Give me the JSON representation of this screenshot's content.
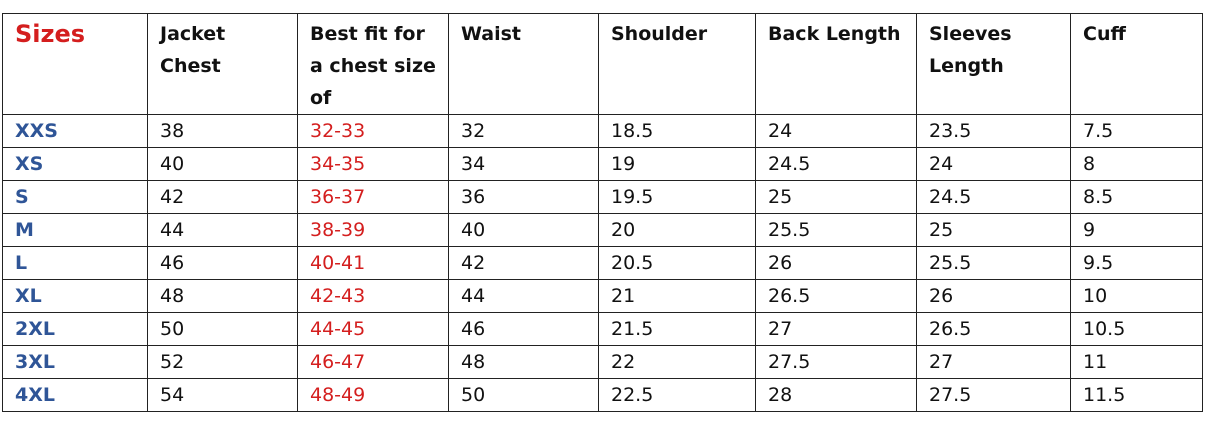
{
  "headers": [
    "Sizes",
    "Jacket Chest",
    "Best fit for a chest size of",
    "Waist",
    "Shoulder",
    "Back Length",
    "Sleeves Length",
    "Cuff"
  ],
  "colors": {
    "sizes_header": "#d41e1e",
    "size_labels": "#2f5597",
    "best_fit_values": "#d41e1e"
  },
  "rows": [
    [
      "XXS",
      "38",
      "32-33",
      "32",
      "18.5",
      "24",
      "23.5",
      "7.5"
    ],
    [
      "XS",
      "40",
      "34-35",
      "34",
      "19",
      "24.5",
      "24",
      "8"
    ],
    [
      "S",
      "42",
      "36-37",
      "36",
      "19.5",
      "25",
      "24.5",
      "8.5"
    ],
    [
      "M",
      "44",
      "38-39",
      "40",
      "20",
      "25.5",
      "25",
      "9"
    ],
    [
      "L",
      "46",
      "40-41",
      "42",
      "20.5",
      "26",
      "25.5",
      "9.5"
    ],
    [
      "XL",
      "48",
      "42-43",
      "44",
      "21",
      "26.5",
      "26",
      "10"
    ],
    [
      "2XL",
      "50",
      "44-45",
      "46",
      "21.5",
      "27",
      "26.5",
      "10.5"
    ],
    [
      "3XL",
      "52",
      "46-47",
      "48",
      "22",
      "27.5",
      "27",
      "11"
    ],
    [
      "4XL",
      "54",
      "48-49",
      "50",
      "22.5",
      "28",
      "27.5",
      "11.5"
    ]
  ]
}
